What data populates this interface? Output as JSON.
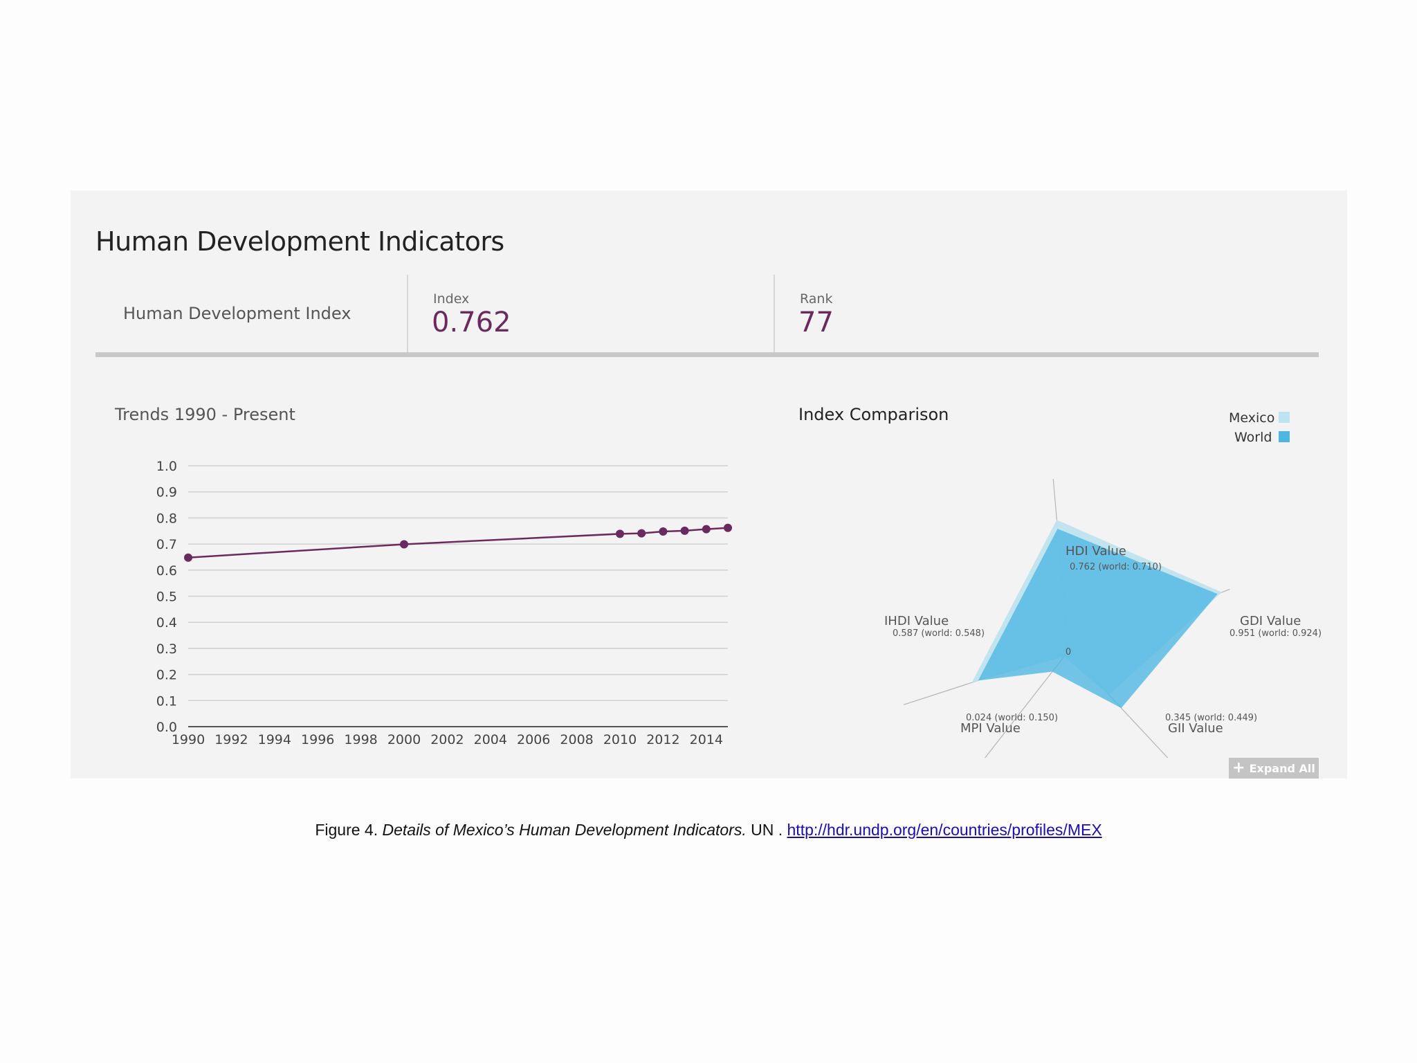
{
  "panel": {
    "title": "Human Development Indicators",
    "index_name": "Human Development Index",
    "index_label": "Index",
    "index_value": "0.762",
    "rank_label": "Rank",
    "rank_value": "77",
    "expand_label": "Expand All"
  },
  "colors": {
    "line": "#6a2a5e",
    "mexico": "#bfe3ee",
    "world": "#4db6e2",
    "grid": "#d0d0d0"
  },
  "chart_data": [
    {
      "type": "line",
      "title": "Trends 1990 - Present",
      "x": [
        1990,
        2000,
        2010,
        2011,
        2012,
        2013,
        2014,
        2015
      ],
      "y": [
        0.648,
        0.699,
        0.739,
        0.741,
        0.748,
        0.751,
        0.757,
        0.762
      ],
      "xticks": [
        "1990",
        "1992",
        "1994",
        "1996",
        "1998",
        "2000",
        "2002",
        "2004",
        "2006",
        "2008",
        "2010",
        "2012",
        "2014"
      ],
      "yticks": [
        "1.0",
        "0.9",
        "0.8",
        "0.7",
        "0.6",
        "0.5",
        "0.4",
        "0.3",
        "0.2",
        "0.1",
        "0.0"
      ],
      "xlim": [
        1990,
        2015
      ],
      "ylim": [
        0,
        1.0
      ],
      "grid": true
    },
    {
      "type": "radar",
      "title": "Index Comparison",
      "legend": [
        "Mexico",
        "World"
      ],
      "legend_position": "top-right",
      "center_label": "0",
      "axes": [
        {
          "name": "HDI Value",
          "label": "0.762 (world: 0.710)",
          "mexico": 0.762,
          "world": 0.71
        },
        {
          "name": "GDI Value",
          "label": "0.951 (world: 0.924)",
          "mexico": 0.951,
          "world": 0.924
        },
        {
          "name": "GII Value",
          "label": "0.345 (world: 0.449)",
          "mexico": 0.345,
          "world": 0.449
        },
        {
          "name": "MPI Value",
          "label": "0.024 (world: 0.150)",
          "mexico": 0.024,
          "world": 0.15
        },
        {
          "name": "IHDI Value",
          "label": "0.587 (world: 0.548)",
          "mexico": 0.587,
          "world": 0.548
        }
      ]
    }
  ],
  "caption": {
    "prefix": "Figure 4. ",
    "italic": "Details of Mexico’s Human Development Indicators.",
    "middle": " UN . ",
    "link": "http://hdr.undp.org/en/countries/profiles/MEX"
  }
}
